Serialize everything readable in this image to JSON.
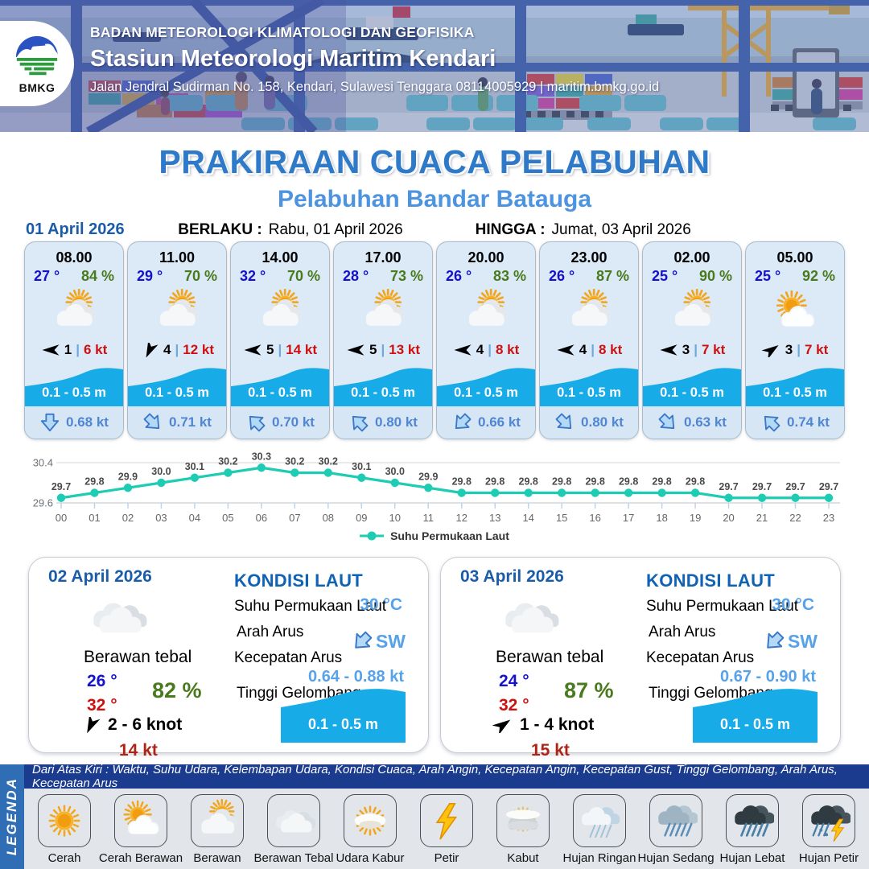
{
  "colors": {
    "title_blue": "#2E79C8",
    "subtitle_blue": "#4D94E0",
    "date_blue": "#1A5CA8",
    "temp_blue": "#1512CF",
    "humidity_green": "#4A7A1E",
    "gust_red": "#D01010",
    "dark_red": "#B02418",
    "wave_blue": "#17ABE8",
    "current_blue": "#4E86D4",
    "light_blue_value": "#57A2E8",
    "chart_teal": "#1ECCB4",
    "legend_bar_blue": "#2F6DB5",
    "legend_strip_blue": "#1B3B8F"
  },
  "header": {
    "logo_label": "BMKG",
    "agency": "BADAN METEOROLOGI KLIMATOLOGI DAN GEOFISIKA",
    "station": "Stasiun Meteorologi Maritim Kendari",
    "address": "Jalan Jendral Sudirman No. 158, Kendari, Sulawesi Tenggara  08114005929 | maritim.bmkg.go.id"
  },
  "title_block": {
    "main": "PRAKIRAAN CUACA PELABUHAN",
    "port": "Pelabuhan Bandar Batauga",
    "valid_from_label": "BERLAKU :",
    "valid_from": "Rabu, 01 April 2026",
    "valid_to_label": "HINGGA :",
    "valid_to": "Jumat, 03 April 2026"
  },
  "day1": {
    "date": "01 April 2026",
    "hours": [
      {
        "time": "08.00",
        "temp": "27 °",
        "humidity": "84 %",
        "weather_icon": "berawan",
        "wind_dir_deg": 180,
        "wind_value": "1",
        "separator": "|",
        "gust": "6 kt",
        "wave_height": "0.1 - 0.5 m",
        "current_dir_deg": 0,
        "current_speed": "0.68 kt"
      },
      {
        "time": "11.00",
        "temp": "29 °",
        "humidity": "70 %",
        "weather_icon": "berawan",
        "wind_dir_deg": 115,
        "wind_value": "4",
        "separator": "|",
        "gust": "12 kt",
        "wave_height": "0.1 - 0.5 m",
        "current_dir_deg": -45,
        "current_speed": "0.71 kt"
      },
      {
        "time": "14.00",
        "temp": "32 °",
        "humidity": "70 %",
        "weather_icon": "berawan",
        "wind_dir_deg": 180,
        "wind_value": "5",
        "separator": "|",
        "gust": "14 kt",
        "wave_height": "0.1 - 0.5 m",
        "current_dir_deg": 135,
        "current_speed": "0.70 kt"
      },
      {
        "time": "17.00",
        "temp": "28 °",
        "humidity": "73 %",
        "weather_icon": "berawan",
        "wind_dir_deg": 180,
        "wind_value": "5",
        "separator": "|",
        "gust": "13 kt",
        "wave_height": "0.1 - 0.5 m",
        "current_dir_deg": 135,
        "current_speed": "0.80 kt"
      },
      {
        "time": "20.00",
        "temp": "26 °",
        "humidity": "83 %",
        "weather_icon": "berawan",
        "wind_dir_deg": 180,
        "wind_value": "4",
        "separator": "|",
        "gust": "8 kt",
        "wave_height": "0.1 - 0.5 m",
        "current_dir_deg": 45,
        "current_speed": "0.66 kt"
      },
      {
        "time": "23.00",
        "temp": "26 °",
        "humidity": "87 %",
        "weather_icon": "berawan",
        "wind_dir_deg": 180,
        "wind_value": "4",
        "separator": "|",
        "gust": "8 kt",
        "wave_height": "0.1 - 0.5 m",
        "current_dir_deg": -45,
        "current_speed": "0.80 kt"
      },
      {
        "time": "02.00",
        "temp": "25 °",
        "humidity": "90 %",
        "weather_icon": "berawan",
        "wind_dir_deg": 180,
        "wind_value": "3",
        "separator": "|",
        "gust": "7 kt",
        "wave_height": "0.1 - 0.5 m",
        "current_dir_deg": -45,
        "current_speed": "0.63 kt"
      },
      {
        "time": "05.00",
        "temp": "25 °",
        "humidity": "92 %",
        "weather_icon": "cerah-berawan",
        "wind_dir_deg": -35,
        "wind_value": "3",
        "separator": "|",
        "gust": "7 kt",
        "wave_height": "0.1 - 0.5 m",
        "current_dir_deg": 135,
        "current_speed": "0.74 kt"
      }
    ]
  },
  "chart_data": {
    "type": "line",
    "x": [
      "00",
      "01",
      "02",
      "03",
      "04",
      "05",
      "06",
      "07",
      "08",
      "09",
      "10",
      "11",
      "12",
      "13",
      "14",
      "15",
      "16",
      "17",
      "18",
      "19",
      "20",
      "21",
      "22",
      "23"
    ],
    "series": [
      {
        "name": "Suhu Permukaan Laut",
        "values": [
          29.7,
          29.8,
          29.9,
          30.0,
          30.1,
          30.2,
          30.3,
          30.2,
          30.2,
          30.1,
          30.0,
          29.9,
          29.8,
          29.8,
          29.8,
          29.8,
          29.8,
          29.8,
          29.8,
          29.8,
          29.7,
          29.7,
          29.7,
          29.7
        ]
      }
    ],
    "ylim": [
      29.6,
      30.4
    ],
    "yticks": [
      29.6,
      30.4
    ],
    "line_color": "#1ECCB4",
    "grid": true,
    "legend_position": "bottom",
    "data_labels": true
  },
  "day2": {
    "date": "02 April 2026",
    "weather_icon": "berawan-tebal",
    "condition": "Berawan tebal",
    "temp_min": "26 °",
    "temp_max": "32 °",
    "humidity": "82 %",
    "wind_dir_deg": 115,
    "wind_range": "2  - 6 knot",
    "gust": "14 kt",
    "sea": {
      "heading": "KONDISI LAUT",
      "sst_label": "Suhu Permukaan Laut",
      "sst_value": "30 °C",
      "current_dir_label": "Arah Arus",
      "current_dir_value": "SW",
      "current_dir_deg": 45,
      "current_speed_label": "Kecepatan Arus",
      "current_speed_value": "0.64 - 0.88 kt",
      "wave_label": "Tinggi Gelombang",
      "wave_value": "0.1 - 0.5 m"
    }
  },
  "day3": {
    "date": "03 April 2026",
    "weather_icon": "berawan-tebal",
    "condition": "Berawan tebal",
    "temp_min": "24 °",
    "temp_max": "32 °",
    "humidity": "87 %",
    "wind_dir_deg": -35,
    "wind_range": "1  - 4 knot",
    "gust": "15 kt",
    "sea": {
      "heading": "KONDISI LAUT",
      "sst_label": "Suhu Permukaan Laut",
      "sst_value": "30 °C",
      "current_dir_label": "Arah Arus",
      "current_dir_value": "SW",
      "current_dir_deg": 45,
      "current_speed_label": "Kecepatan Arus",
      "current_speed_value": "0.67  - 0.90 kt",
      "wave_label": "Tinggi Gelombang",
      "wave_value": "0.1 - 0.5 m"
    }
  },
  "legend": {
    "title": "LEGENDA",
    "note": "Dari Atas Kiri : Waktu, Suhu Udara, Kelembapan Udara, Kondisi Cuaca, Arah Angin, Kecepatan Angin, Kecepatan Gust, Tinggi Gelombang, Arah Arus, Kecepatan Arus",
    "items": [
      {
        "label": "Cerah",
        "icon": "cerah"
      },
      {
        "label": "Cerah Berawan",
        "icon": "cerah-berawan"
      },
      {
        "label": "Berawan",
        "icon": "berawan"
      },
      {
        "label": "Berawan Tebal",
        "icon": "berawan-tebal"
      },
      {
        "label": "Udara Kabur",
        "icon": "udara-kabur"
      },
      {
        "label": "Petir",
        "icon": "petir"
      },
      {
        "label": "Kabut",
        "icon": "kabut"
      },
      {
        "label": "Hujan Ringan",
        "icon": "hujan-ringan"
      },
      {
        "label": "Hujan Sedang",
        "icon": "hujan-sedang"
      },
      {
        "label": "Hujan Lebat",
        "icon": "hujan-lebat"
      },
      {
        "label": "Hujan Petir",
        "icon": "hujan-petir"
      }
    ]
  }
}
